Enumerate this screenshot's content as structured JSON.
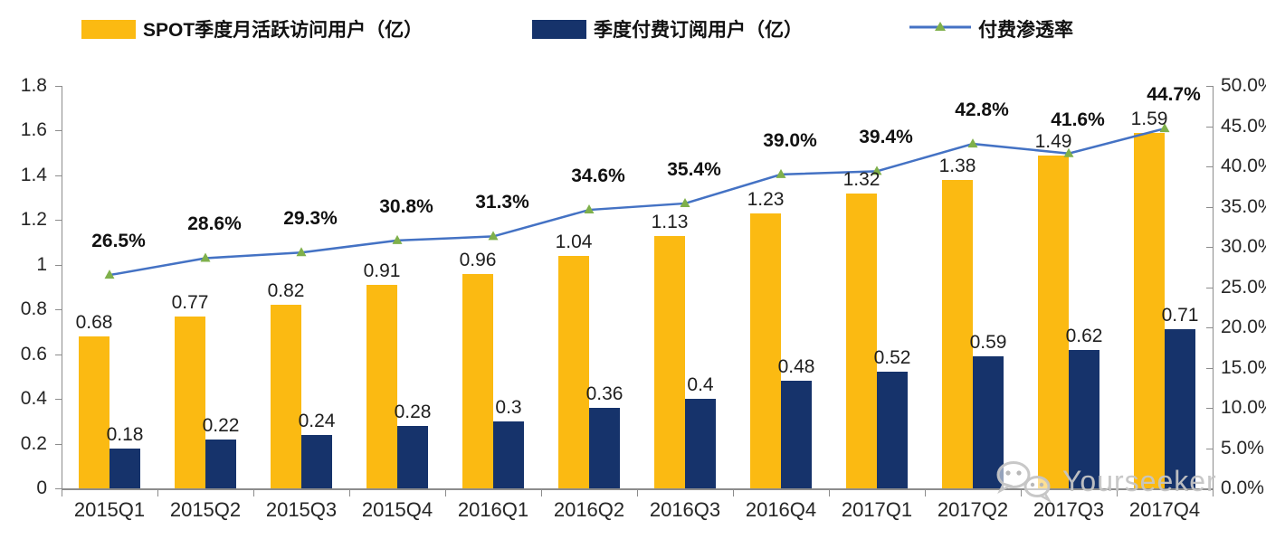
{
  "legend": [
    {
      "label": "SPOT季度月活跃访问用户（亿）",
      "type": "bar",
      "color": "#FBBA12"
    },
    {
      "label": "季度付费订阅用户（亿）",
      "type": "bar",
      "color": "#16336B"
    },
    {
      "label": "付费渗透率",
      "type": "line",
      "color": "#4472C4",
      "marker_color": "#7FB04B"
    }
  ],
  "chart_data": {
    "type": "bar",
    "categories": [
      "2015Q1",
      "2015Q2",
      "2015Q3",
      "2015Q4",
      "2016Q1",
      "2016Q2",
      "2016Q3",
      "2016Q4",
      "2017Q1",
      "2017Q2",
      "2017Q3",
      "2017Q4"
    ],
    "series": [
      {
        "name": "SPOT季度月活跃访问用户（亿）",
        "type": "bar",
        "axis": "left",
        "color": "#FBBA12",
        "values": [
          0.68,
          0.77,
          0.82,
          0.91,
          0.96,
          1.04,
          1.13,
          1.23,
          1.32,
          1.38,
          1.49,
          1.59
        ],
        "labels": [
          "0.68",
          "0.77",
          "0.82",
          "0.91",
          "0.96",
          "1.04",
          "1.13",
          "1.23",
          "1.32",
          "1.38",
          "1.49",
          "1.59"
        ]
      },
      {
        "name": "季度付费订阅用户（亿）",
        "type": "bar",
        "axis": "left",
        "color": "#16336B",
        "values": [
          0.18,
          0.22,
          0.24,
          0.28,
          0.3,
          0.36,
          0.4,
          0.48,
          0.52,
          0.59,
          0.62,
          0.71
        ],
        "labels": [
          "0.18",
          "0.22",
          "0.24",
          "0.28",
          "0.3",
          "0.36",
          "0.4",
          "0.48",
          "0.52",
          "0.59",
          "0.62",
          "0.71"
        ]
      },
      {
        "name": "付费渗透率",
        "type": "line",
        "axis": "right",
        "color": "#4472C4",
        "marker_color": "#7FB04B",
        "values": [
          26.5,
          28.6,
          29.3,
          30.8,
          31.3,
          34.6,
          35.4,
          39.0,
          39.4,
          42.8,
          41.6,
          44.7
        ],
        "labels": [
          "26.5%",
          "28.6%",
          "29.3%",
          "30.8%",
          "31.3%",
          "34.6%",
          "35.4%",
          "39.0%",
          "39.4%",
          "42.8%",
          "41.6%",
          "44.7%"
        ]
      }
    ],
    "left_axis": {
      "min": 0,
      "max": 1.8,
      "step": 0.2,
      "tick_values": [
        0,
        0.2,
        0.4,
        0.6,
        0.8,
        1,
        1.2,
        1.4,
        1.6,
        1.8
      ],
      "tick_labels": [
        "0",
        "0.2",
        "0.4",
        "0.6",
        "0.8",
        "1",
        "1.2",
        "1.4",
        "1.6",
        "1.8"
      ]
    },
    "right_axis": {
      "min": 0,
      "max": 50,
      "step": 5,
      "tick_values": [
        0,
        5,
        10,
        15,
        20,
        25,
        30,
        35,
        40,
        45,
        50
      ],
      "tick_labels": [
        "0.0%",
        "5.0%",
        "10.0%",
        "15.0%",
        "20.0%",
        "25.0%",
        "30.0%",
        "35.0%",
        "40.0%",
        "45.0%",
        "50.0%"
      ]
    },
    "grid": false,
    "legend_position": "top"
  },
  "watermark": {
    "text": "Yourseeker",
    "icon": "wechat-icon"
  },
  "colors": {
    "axis": "#8C8C8C",
    "text": "#262626"
  }
}
